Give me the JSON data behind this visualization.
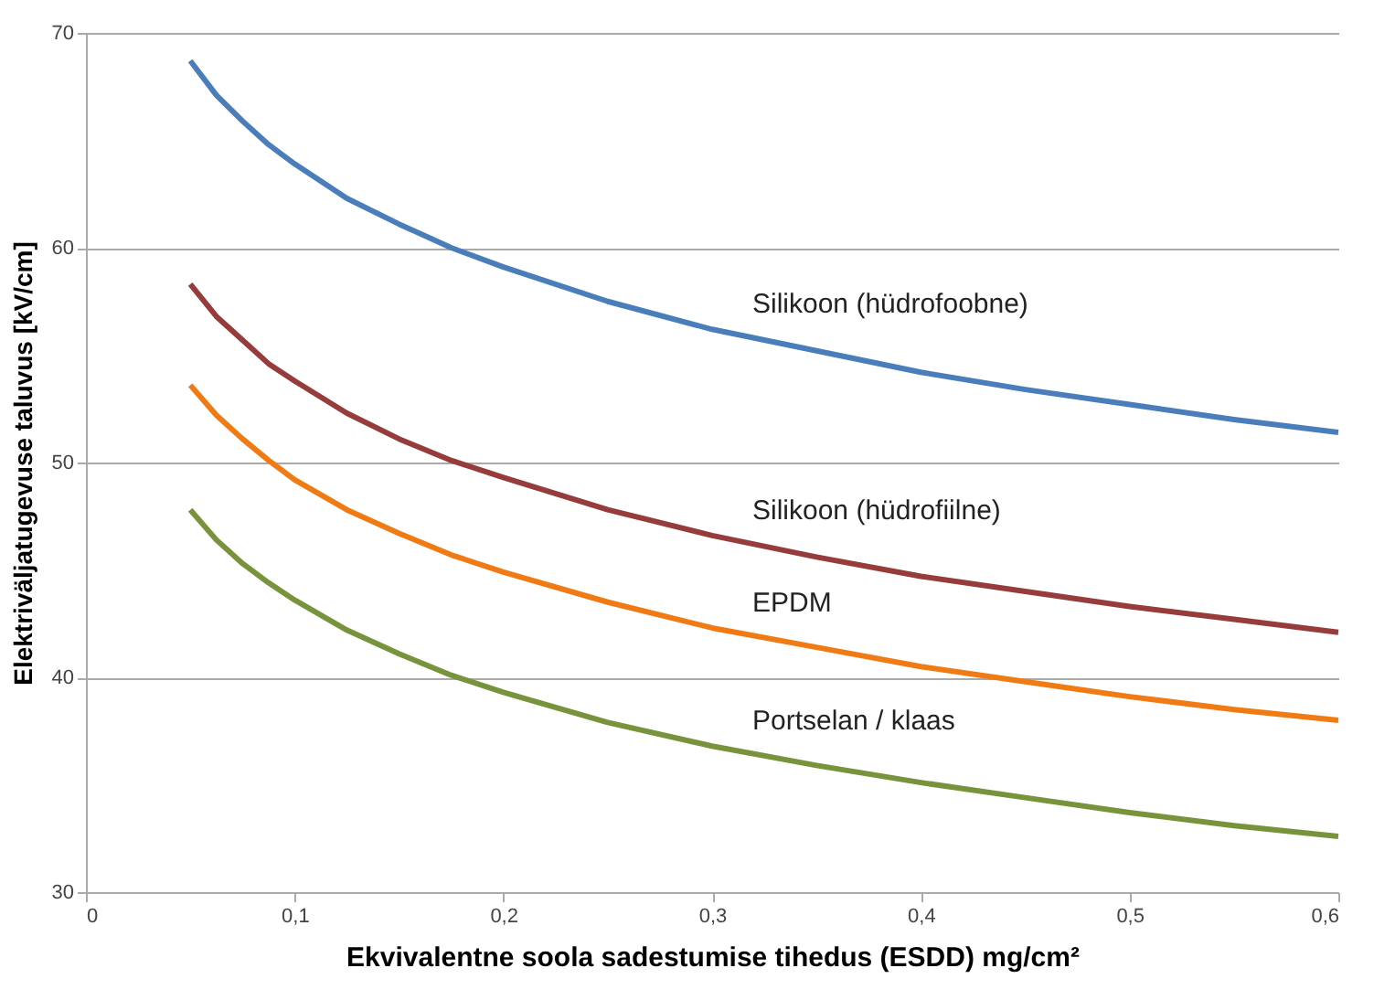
{
  "chart_data": {
    "type": "line",
    "xlabel": "Ekvivalentne soola sadestumise tihedus (ESDD) mg/cm²",
    "ylabel": "Elektriväljatugevuse taluvus [kV/cm]",
    "x": [
      0.05,
      0.0625,
      0.075,
      0.0875,
      0.1,
      0.125,
      0.15,
      0.175,
      0.2,
      0.25,
      0.3,
      0.35,
      0.4,
      0.45,
      0.5,
      0.55,
      0.6
    ],
    "series": [
      {
        "name": "Silikoon (hüdrofoobne)",
        "color": "#4a7ebb",
        "values": [
          68.7,
          67.1,
          65.9,
          64.8,
          63.9,
          62.3,
          61.1,
          60.0,
          59.1,
          57.5,
          56.2,
          55.2,
          54.2,
          53.4,
          52.7,
          52.0,
          51.4
        ]
      },
      {
        "name": "Silikoon (hüdrofiilne)",
        "color": "#963c3c",
        "values": [
          58.3,
          56.8,
          55.7,
          54.6,
          53.8,
          52.3,
          51.1,
          50.1,
          49.3,
          47.8,
          46.6,
          45.6,
          44.7,
          44.0,
          43.3,
          42.7,
          42.1
        ]
      },
      {
        "name": "EPDM",
        "color": "#f07b15",
        "values": [
          53.6,
          52.2,
          51.1,
          50.1,
          49.2,
          47.8,
          46.7,
          45.7,
          44.9,
          43.5,
          42.3,
          41.4,
          40.5,
          39.8,
          39.1,
          38.5,
          38.0
        ]
      },
      {
        "name": "Portselan / klaas",
        "color": "#77933c",
        "values": [
          47.8,
          46.4,
          45.3,
          44.4,
          43.6,
          42.2,
          41.1,
          40.1,
          39.3,
          37.9,
          36.8,
          35.9,
          35.1,
          34.4,
          33.7,
          33.1,
          32.6
        ]
      }
    ],
    "xlim": [
      0,
      0.6
    ],
    "xticks": [
      0,
      {
        "value": 0.1,
        "label": "0,1"
      },
      {
        "value": 0.2,
        "label": "0,2"
      },
      {
        "value": 0.3,
        "label": "0,3"
      },
      {
        "value": 0.4,
        "label": "0,4"
      },
      {
        "value": 0.5,
        "label": "0,5"
      },
      {
        "value": 0.6,
        "label": "0,6"
      }
    ],
    "ylim": [
      30,
      70
    ],
    "yticks": [
      30,
      40,
      50,
      60,
      70
    ],
    "grid": "y",
    "legend": false,
    "marker": "none",
    "line_style": "solid"
  }
}
